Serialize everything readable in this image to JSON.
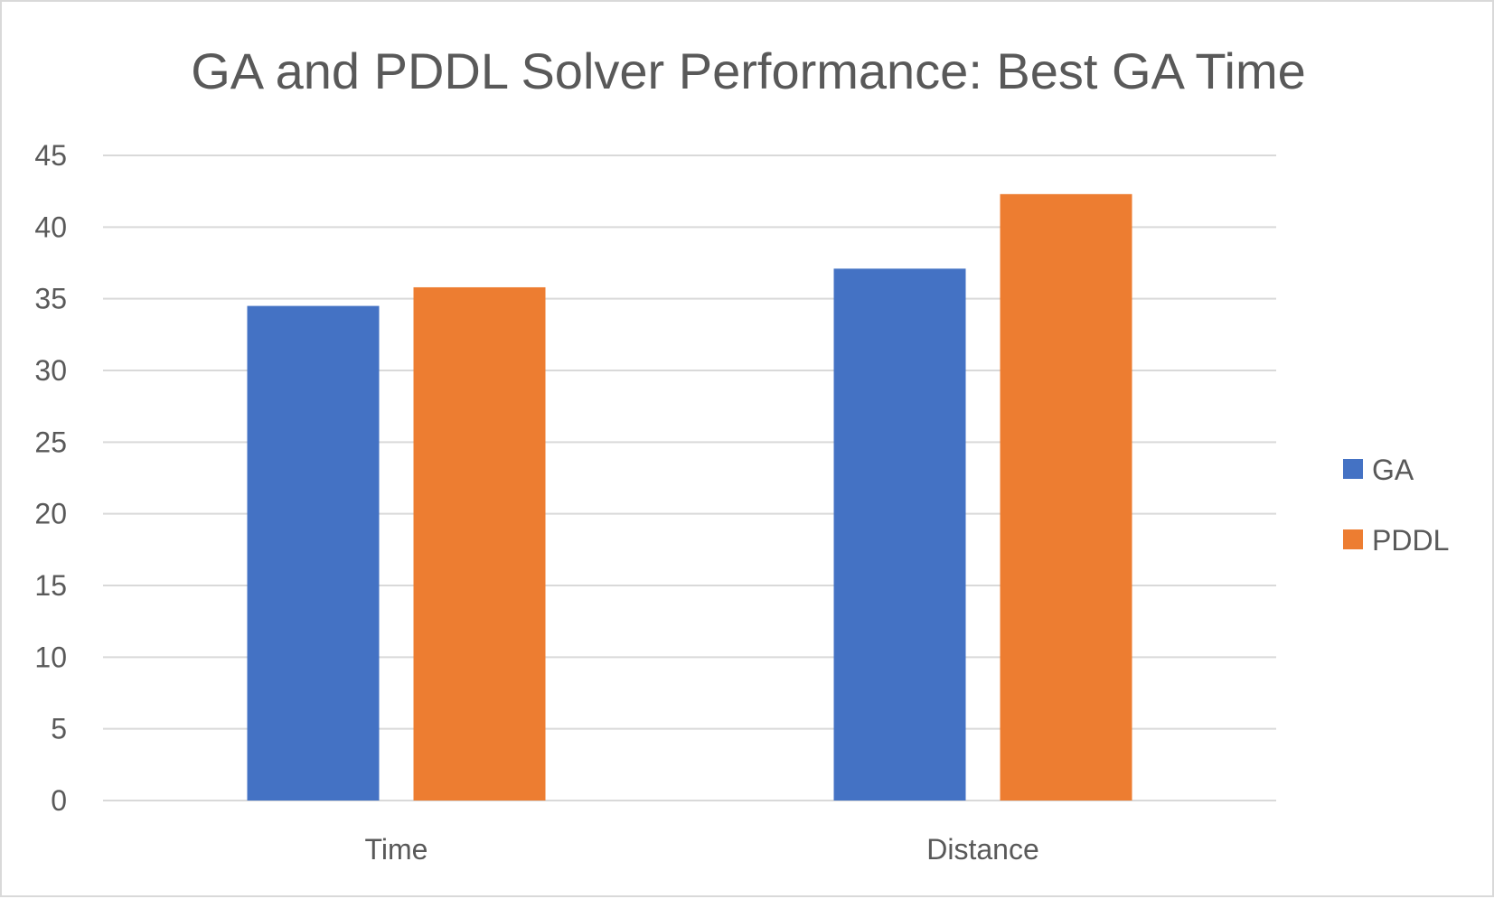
{
  "chart_data": {
    "type": "bar",
    "title": "GA and PDDL Solver Performance: Best GA Time",
    "xlabel": "",
    "ylabel": "",
    "categories": [
      "Time",
      "Distance"
    ],
    "series": [
      {
        "name": "GA",
        "values": [
          34.5,
          37.1
        ],
        "color": "#4472C4"
      },
      {
        "name": "PDDL",
        "values": [
          35.8,
          42.3
        ],
        "color": "#ED7D31"
      }
    ],
    "ylim": [
      0,
      45
    ],
    "yticks": [
      0,
      5,
      10,
      15,
      20,
      25,
      30,
      35,
      40,
      45
    ],
    "grid": true,
    "legend_position": "right"
  }
}
